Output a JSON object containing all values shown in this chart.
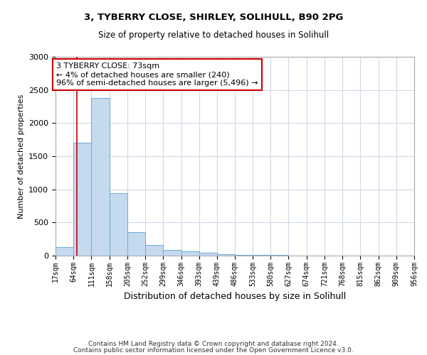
{
  "title1": "3, TYBERRY CLOSE, SHIRLEY, SOLIHULL, B90 2PG",
  "title2": "Size of property relative to detached houses in Solihull",
  "xlabel": "Distribution of detached houses by size in Solihull",
  "ylabel": "Number of detached properties",
  "bin_edges": [
    17,
    64,
    111,
    158,
    205,
    252,
    299,
    346,
    393,
    439,
    486,
    533,
    580,
    627,
    674,
    721,
    768,
    815,
    862,
    909,
    956
  ],
  "bar_heights": [
    130,
    1700,
    2380,
    940,
    350,
    165,
    90,
    60,
    45,
    22,
    15,
    10,
    8,
    0,
    0,
    0,
    0,
    0,
    0,
    0
  ],
  "bar_color": "#c5d9ef",
  "bar_edge_color": "#6baed6",
  "property_size": 73,
  "annotation_text": "3 TYBERRY CLOSE: 73sqm\n← 4% of detached houses are smaller (240)\n96% of semi-detached houses are larger (5,496) →",
  "annotation_box_color": "#ffffff",
  "annotation_edge_color": "#cc0000",
  "vline_color": "#cc0000",
  "ylim": [
    0,
    3000
  ],
  "yticks": [
    0,
    500,
    1000,
    1500,
    2000,
    2500,
    3000
  ],
  "footer1": "Contains HM Land Registry data © Crown copyright and database right 2024.",
  "footer2": "Contains public sector information licensed under the Open Government Licence v3.0.",
  "background_color": "#ffffff",
  "grid_color": "#d0d8e8"
}
